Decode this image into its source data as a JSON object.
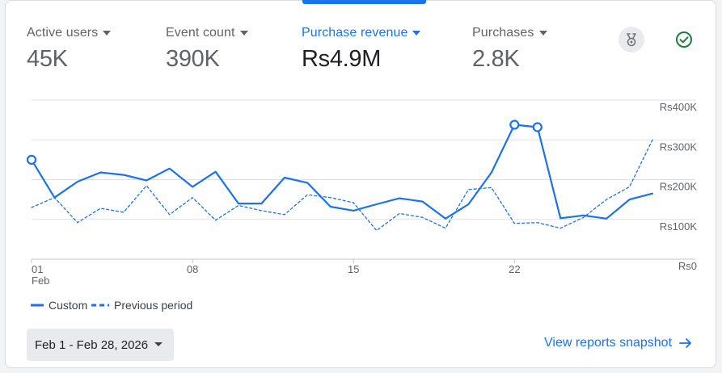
{
  "metrics": [
    {
      "label": "Active users",
      "value": "45K"
    },
    {
      "label": "Event count",
      "value": "390K"
    },
    {
      "label": "Purchase revenue",
      "value": "Rs4.9M"
    },
    {
      "label": "Purchases",
      "value": "2.8K"
    }
  ],
  "icons": {
    "insights": "insights-icon",
    "status": "check-circle-icon"
  },
  "colors": {
    "accent": "#1a73e8",
    "status_ok": "#188038",
    "grid": "#e0e0e0"
  },
  "chart_data": {
    "type": "line",
    "x": [
      "Feb 1",
      "Feb 2",
      "Feb 3",
      "Feb 4",
      "Feb 5",
      "Feb 6",
      "Feb 7",
      "Feb 8",
      "Feb 9",
      "Feb 10",
      "Feb 11",
      "Feb 12",
      "Feb 13",
      "Feb 14",
      "Feb 15",
      "Feb 16",
      "Feb 17",
      "Feb 18",
      "Feb 19",
      "Feb 20",
      "Feb 21",
      "Feb 22",
      "Feb 23",
      "Feb 24",
      "Feb 25",
      "Feb 26",
      "Feb 27",
      "Feb 28"
    ],
    "x_ticks": [
      {
        "index": 0,
        "label": "01",
        "sublabel": "Feb"
      },
      {
        "index": 7,
        "label": "08",
        "sublabel": ""
      },
      {
        "index": 14,
        "label": "15",
        "sublabel": ""
      },
      {
        "index": 21,
        "label": "22",
        "sublabel": ""
      }
    ],
    "y_ticks": [
      "Rs0",
      "Rs100K",
      "Rs200K",
      "Rs300K",
      "Rs400K"
    ],
    "ylim": [
      0,
      400000
    ],
    "grid": true,
    "y_axis_position": "right",
    "series": [
      {
        "name": "Custom",
        "style": "solid",
        "values": [
          250000,
          155000,
          195000,
          218000,
          212000,
          198000,
          228000,
          182000,
          220000,
          140000,
          140000,
          205000,
          192000,
          132000,
          122000,
          138000,
          153000,
          145000,
          102000,
          138000,
          218000,
          338000,
          332000,
          103000,
          110000,
          102000,
          150000,
          165000
        ],
        "highlighted_indices": [
          0,
          21,
          22
        ]
      },
      {
        "name": "Previous period",
        "style": "dashed",
        "values": [
          130000,
          155000,
          92000,
          128000,
          118000,
          185000,
          112000,
          155000,
          98000,
          135000,
          122000,
          112000,
          162000,
          155000,
          142000,
          72000,
          115000,
          105000,
          78000,
          175000,
          180000,
          90000,
          92000,
          78000,
          105000,
          150000,
          182000,
          300000
        ]
      }
    ]
  },
  "footer": {
    "date_range": "Feb 1 - Feb 28, 2026",
    "view_link": "View reports snapshot"
  }
}
